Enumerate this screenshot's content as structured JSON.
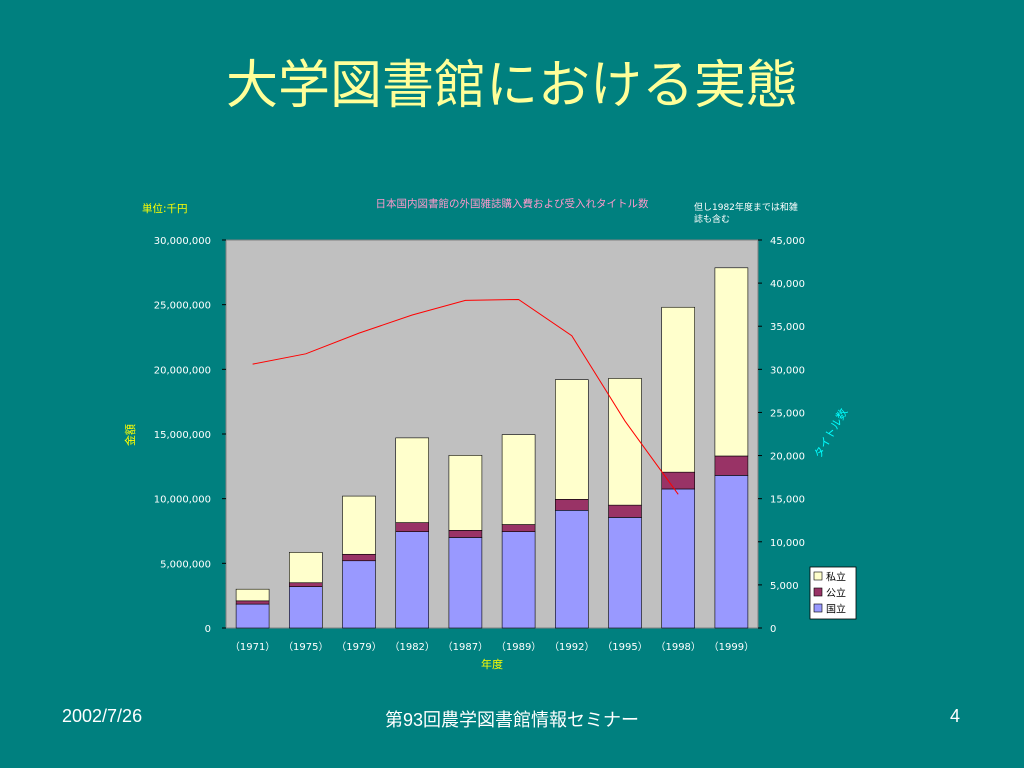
{
  "slide": {
    "title": "大学図書館における実態",
    "footer_date": "2002/7/26",
    "footer_center": "第93回農学図書館情報セミナー",
    "page_number": "4"
  },
  "colors": {
    "background": "#00807f",
    "title": "#ffff99",
    "plot_area": "#c0c0c0",
    "national": "#9999ff",
    "public": "#993366",
    "private": "#ffffcc",
    "line": "#ff0000",
    "chart_title": "#ff99cc",
    "axis_text": "#ffffff",
    "left_axis_label": "#ffff00",
    "right_axis_label": "#00ffff"
  },
  "chart_data": {
    "type": "bar",
    "stacked": true,
    "title": "日本国内図書館の外国雑誌購入費および受入れタイトル数",
    "note": "但し1982年度までは和雑誌も含む",
    "unit_label": "単位:千円",
    "xlabel": "年度",
    "ylabel_left": "金額",
    "ylabel_right": "タイトル数",
    "categories": [
      "（1971）",
      "（1975）",
      "（1979）",
      "（1982）",
      "（1987）",
      "（1989）",
      "（1992）",
      "（1995）",
      "（1998）",
      "（1999）"
    ],
    "ylim_left": [
      0,
      30000000
    ],
    "yticks_left": [
      "0",
      "5,000,000",
      "10,000,000",
      "15,000,000",
      "20,000,000",
      "25,000,000",
      "30,000,000"
    ],
    "ylim_right": [
      0,
      45000
    ],
    "yticks_right": [
      "0",
      "5,000",
      "10,000",
      "15,000",
      "20,000",
      "25,000",
      "30,000",
      "35,000",
      "40,000",
      "45,000"
    ],
    "series": [
      {
        "name": "国立",
        "values": [
          1850000,
          3200000,
          5200000,
          7450000,
          7000000,
          7450000,
          9100000,
          8550000,
          10750000,
          11800000
        ]
      },
      {
        "name": "公立",
        "values": [
          250000,
          300000,
          500000,
          700000,
          550000,
          550000,
          850000,
          950000,
          1300000,
          1500000
        ]
      },
      {
        "name": "私立",
        "values": [
          900000,
          2350000,
          4500000,
          6550000,
          5800000,
          6950000,
          9250000,
          9800000,
          12750000,
          14550000
        ]
      }
    ],
    "line_series": {
      "name": "タイトル数",
      "values": [
        30600,
        31800,
        34200,
        36300,
        38000,
        38100,
        33900,
        24000,
        15500,
        null
      ]
    },
    "grid": false,
    "legend_position": "bottom-right"
  }
}
